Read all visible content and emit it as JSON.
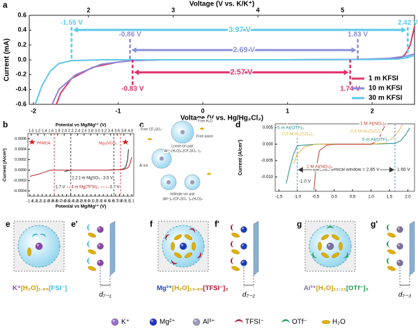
{
  "chart_data": [
    {
      "type": "line",
      "panel": "a",
      "xlabel": "Voltage (V vs. Hg/Hg₂Cl₂)",
      "x2label": "Voltage (V vs. K/K⁺)",
      "ylabel": "Current (mA)",
      "xlim": [
        -2.05,
        2.5
      ],
      "xticks": [
        -2,
        -1,
        0,
        1,
        2
      ],
      "x2lim": [
        1.3,
        5.85
      ],
      "x2ticks": [
        2,
        3,
        4,
        5
      ],
      "ylim": [
        -0.6,
        0.6
      ],
      "yticks": [
        -0.6,
        -0.4,
        -0.2,
        {
          "value": 0,
          "label": "0.0"
        },
        0.2,
        0.4,
        0.6
      ],
      "series": [
        {
          "name": "1 m  KFSI",
          "color": "#d63a6a",
          "x": [
            -1.73,
            -1.68,
            -1.55,
            -1.3,
            -1.0,
            -0.83,
            -0.5,
            0,
            1,
            1.74,
            2.1,
            2.3,
            2.36,
            2.4,
            2.45,
            2.5
          ],
          "values": [
            -0.6,
            -0.45,
            -0.25,
            -0.1,
            -0.03,
            -0.01,
            0,
            0,
            0,
            0.005,
            0.01,
            0.02,
            0.04,
            0.09,
            0.2,
            0.45
          ]
        },
        {
          "name": "10 m KFSI",
          "color": "#8a86d6",
          "x": [
            -1.78,
            -1.7,
            -1.5,
            -1.2,
            -0.86,
            -0.5,
            0,
            1,
            1.83,
            2.2,
            2.4,
            2.5
          ],
          "values": [
            -0.6,
            -0.4,
            -0.2,
            -0.06,
            -0.01,
            0,
            0,
            0,
            0.005,
            0.02,
            0.05,
            0.08
          ]
        },
        {
          "name": "30 m KFSI",
          "color": "#5bc8ea",
          "x": [
            -1.98,
            -1.9,
            -1.8,
            -1.7,
            -1.55,
            -1.2,
            0,
            1,
            2,
            2.3,
            2.42,
            2.5
          ],
          "values": [
            -0.6,
            -0.35,
            -0.15,
            -0.05,
            -0.01,
            0,
            0,
            0,
            0.005,
            0.01,
            0.03,
            0.06
          ]
        }
      ],
      "windows": [
        {
          "start": -1.55,
          "end": 2.42,
          "start_label": "-1.55 V",
          "end_label": "2.42 V",
          "width_label": "3.97 V",
          "color": "#5bc8ea"
        },
        {
          "start": -0.86,
          "end": 1.83,
          "start_label": "-0.86 V",
          "end_label": "1.83 V",
          "width_label": "2.69 V",
          "color": "#8a8fd8"
        },
        {
          "start": -0.83,
          "end": 1.74,
          "start_label": "-0.83 V",
          "end_label": "1.74 V",
          "width_label": "2.57 V",
          "color": "#e0306a"
        }
      ]
    },
    {
      "type": "line",
      "panel": "b",
      "xlabel": "Potenial vs Mg/Mg²⁺ (V)",
      "x2label": "Potenial vs Mg/Mg²⁺ (V)",
      "ylabel": "Current (A/cm²)",
      "xlim": [
        -1.45,
        1.15
      ],
      "xticks": [
        -1.4,
        -1.3,
        -1.2,
        -1.1,
        {
          "value": -1,
          "label": "-1.0"
        },
        -0.9,
        -0.8,
        -0.7,
        -0.6,
        -0.5,
        -0.4,
        -0.3,
        -0.2,
        -0.1,
        {
          "value": 0,
          "label": "0.0"
        },
        0.1,
        0.2,
        0.3,
        0.4,
        0.5,
        0.6,
        0.7,
        0.8,
        0.9,
        {
          "value": 1,
          "label": "1.0"
        },
        1.1
      ],
      "x2lim": [
        0.9,
        4.1
      ],
      "x2ticks": [
        {
          "value": 1,
          "label": "1.0"
        },
        1.2,
        1.4,
        1.6,
        1.8,
        {
          "value": 2,
          "label": "2.0"
        },
        2.2,
        2.4,
        2.6,
        2.8,
        {
          "value": 3,
          "label": "3.0"
        },
        3.2,
        3.4,
        3.6,
        3.8,
        {
          "value": 4,
          "label": "4.0"
        }
      ],
      "ylim": [
        -0.0005,
        0.0007
      ],
      "yticks": [
        -0.0004,
        -0.0002,
        {
          "value": 0,
          "label": "0.0000"
        },
        0.0002,
        0.0004,
        0.0006
      ],
      "series": [
        {
          "name": "1 m MgSO₄",
          "color": "#222222",
          "x": [
            -0.55,
            -0.45,
            -0.3,
            0,
            0.5,
            0.85,
            0.95,
            1.0,
            1.02
          ],
          "values": [
            -3e-05,
            -5e-06,
            0,
            0,
            0,
            1e-05,
            5e-05,
            0.0002,
            0.0004
          ]
        },
        {
          "name": "4 m Mg(TFSI)₂",
          "color": "#b22222",
          "x": [
            -1.4,
            -1.2,
            -1.0,
            -0.9,
            -0.5,
            0,
            0.5,
            0.9,
            1.0,
            1.05,
            1.1
          ],
          "values": [
            -0.00012,
            -8e-05,
            -3e-05,
            0,
            0,
            0,
            0,
            1e-05,
            4e-05,
            0.0001,
            0.00025
          ]
        }
      ],
      "windows": [
        {
          "axis": "x2",
          "start": 2.2,
          "end": 3.5,
          "start_label": "2.2 V",
          "end_label": "3.5 V",
          "color": "#222222"
        },
        {
          "axis": "x2",
          "start": 1.7,
          "end": 3.7,
          "start_label": "1.7 V",
          "end_label": "3.7 V",
          "color": "#d02020"
        }
      ],
      "annotations": [
        "PFMDA",
        "Mg₃(VO₄)₂"
      ]
    },
    {
      "type": "line",
      "panel": "d",
      "ylabel": "Current (A/cm²)",
      "xlim": [
        -1.6,
        2.18
      ],
      "xticks": [
        -1.5,
        {
          "value": -1,
          "label": "-1.0"
        },
        -0.5,
        {
          "value": 0,
          "label": "0.0"
        },
        0.5,
        {
          "value": 1,
          "label": "1.0"
        },
        1.5,
        {
          "value": 2,
          "label": "2.0"
        }
      ],
      "ylim": [
        -0.0144,
        0.0062
      ],
      "yticks": [
        {
          "value": -0.01,
          "label": "-0.010"
        },
        -0.005,
        {
          "value": 0,
          "label": "0.000"
        },
        0.005
      ],
      "series": [
        {
          "name": "5 m Al(OTF)₃",
          "color": "#1f8a8a",
          "x": [
            -1.3,
            -1.2,
            -1.1,
            -1.0,
            -0.5,
            0,
            1,
            1.65,
            1.8,
            1.95,
            2.05
          ],
          "values": [
            -0.012,
            -0.007,
            -0.003,
            -0.0005,
            0,
            0,
            0,
            0.0002,
            0.001,
            0.003,
            0.005
          ]
        },
        {
          "name": "0.5 M Al₂(SO₄)₃",
          "color": "#e0b840",
          "x": [
            -1.1,
            -1.0,
            -0.8,
            -0.5,
            0,
            1,
            1.4,
            1.6,
            1.75,
            1.85
          ],
          "values": [
            -0.006,
            -0.003,
            -0.0008,
            0,
            0,
            0,
            0.0003,
            0.002,
            0.004,
            0.006
          ]
        },
        {
          "name": "1 M Al(NO₃)₃",
          "color": "#c0392b",
          "x": [
            -0.55,
            -0.5,
            -0.4,
            -0.2,
            0,
            1,
            1.2,
            1.3,
            1.4
          ],
          "values": [
            -0.014,
            -0.008,
            -0.002,
            -0.0003,
            0,
            0,
            0.001,
            0.004,
            0.006
          ]
        }
      ],
      "windows": [
        {
          "start": -1.0,
          "end": 1.65,
          "start_label": "-1.0 V",
          "end_label": "1.65 V",
          "width_label": "Electrochemical window = 2.65 V",
          "color": "#3a6fd0"
        }
      ]
    }
  ],
  "diagram_c": {
    "panel": "c",
    "texts": [
      "Free CF₃SO₃⁻",
      "Free H₂O",
      "Free anion",
      "Loose ion pair",
      "Al³⁺-(H₂O)₆-(CF₃SO₃⁻)₃",
      "Al ion",
      "Intimate ion pair",
      "(Al³⁺)ₓ-(CF₃SO₃⁻)ᵧ-(H₂O)ₙ"
    ]
  },
  "structures": [
    {
      "label": "e",
      "detail_label": "e'",
      "distance": "d₇₋₁",
      "formula": [
        {
          "text": "K⁺",
          "color": "#8e44ad"
        },
        {
          "text": "[H₂O]₁.₈₅",
          "color": "#c99a00"
        },
        {
          "text": "[FSI⁻]",
          "color": "#3fb6d8"
        }
      ]
    },
    {
      "label": "f",
      "detail_label": "f'",
      "distance": "d₇₋₂",
      "formula": [
        {
          "text": "Mg²⁺",
          "color": "#1a3fb8"
        },
        {
          "text": "[H₂O]₁₃.₈₉",
          "color": "#c99a00"
        },
        {
          "text": "[TFSI⁻]₂",
          "color": "#b01030"
        }
      ]
    },
    {
      "label": "g",
      "detail_label": "g'",
      "distance": "d₇₋₃",
      "formula": [
        {
          "text": "Al³⁺",
          "color": "#7a6fa0"
        },
        {
          "text": "[H₂O]₁₁.₁₁",
          "color": "#c99a00"
        },
        {
          "text": "[OTf⁻]₃",
          "color": "#1a9a4a"
        }
      ]
    }
  ],
  "legend": [
    {
      "label": "K⁺",
      "shape": "ion",
      "color": "#9b6fd0"
    },
    {
      "label": "Mg²⁺",
      "shape": "ion",
      "color": "#2233cc"
    },
    {
      "label": "Al³⁺",
      "shape": "ion",
      "color": "#9a9ab8"
    },
    {
      "label": "TFSI⁻",
      "shape": "crescent",
      "color": "#b01030"
    },
    {
      "label": "OTf⁻",
      "shape": "crescent",
      "color": "#1a9a50"
    },
    {
      "label": "H₂O",
      "shape": "ellipse",
      "color": "#e0b000"
    }
  ]
}
